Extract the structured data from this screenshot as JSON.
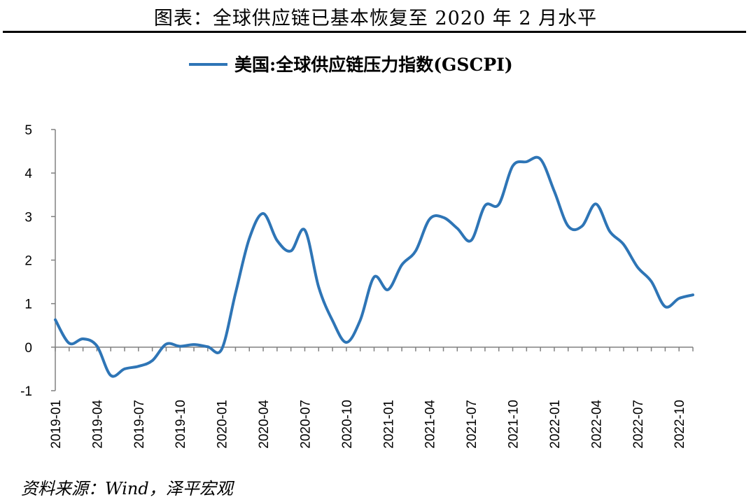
{
  "page": {
    "figure_title": "图表：全球供应链已基本恢复至 2020 年 2 月水平",
    "source": "资料来源：Wind，泽平宏观"
  },
  "chart_data": {
    "type": "line",
    "title": "",
    "xlabel": "",
    "ylabel": "",
    "ylim": [
      -1,
      5
    ],
    "yticks": [
      -1,
      0,
      1,
      2,
      3,
      4,
      5
    ],
    "xtick_labels": [
      "2019-01",
      "2019-04",
      "2019-07",
      "2019-10",
      "2020-01",
      "2020-04",
      "2020-07",
      "2020-10",
      "2021-01",
      "2021-04",
      "2021-07",
      "2021-10",
      "2022-01",
      "2022-04",
      "2022-07",
      "2022-10"
    ],
    "grid": false,
    "legend_position": "top",
    "line_color": "#2E75B6",
    "x": [
      "2019-01",
      "2019-02",
      "2019-03",
      "2019-04",
      "2019-05",
      "2019-06",
      "2019-07",
      "2019-08",
      "2019-09",
      "2019-10",
      "2019-11",
      "2019-12",
      "2020-01",
      "2020-02",
      "2020-03",
      "2020-04",
      "2020-05",
      "2020-06",
      "2020-07",
      "2020-08",
      "2020-09",
      "2020-10",
      "2020-11",
      "2020-12",
      "2021-01",
      "2021-02",
      "2021-03",
      "2021-04",
      "2021-05",
      "2021-06",
      "2021-07",
      "2021-08",
      "2021-09",
      "2021-10",
      "2021-11",
      "2021-12",
      "2022-01",
      "2022-02",
      "2022-03",
      "2022-04",
      "2022-05",
      "2022-06",
      "2022-07",
      "2022-08",
      "2022-09",
      "2022-10",
      "2022-11"
    ],
    "series": [
      {
        "name": "美国:全球供应链压力指数(GSCPI)",
        "values": [
          0.63,
          0.09,
          0.19,
          0.03,
          -0.65,
          -0.5,
          -0.44,
          -0.31,
          0.07,
          0.02,
          0.06,
          0.01,
          -0.05,
          1.24,
          2.5,
          3.07,
          2.45,
          2.21,
          2.69,
          1.38,
          0.61,
          0.11,
          0.62,
          1.61,
          1.32,
          1.89,
          2.21,
          2.94,
          2.98,
          2.73,
          2.45,
          3.25,
          3.28,
          4.16,
          4.26,
          4.32,
          3.58,
          2.78,
          2.78,
          3.29,
          2.66,
          2.36,
          1.84,
          1.51,
          0.93,
          1.12,
          1.2
        ]
      }
    ]
  }
}
